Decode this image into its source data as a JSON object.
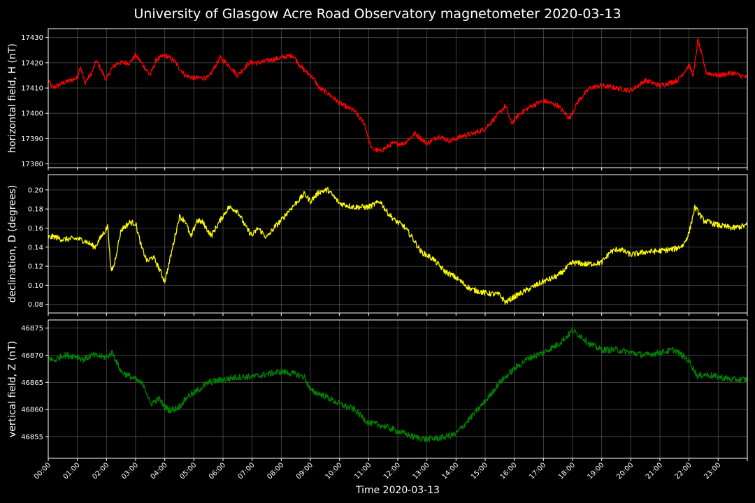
{
  "title": "University of Glasgow Acre Road Observatory magnetometer 2020-03-13",
  "chart_data": [
    {
      "type": "line",
      "ylabel": "horizontal field, H (nT)",
      "xlabel": "",
      "xlim": [
        0,
        24
      ],
      "ylim": [
        17378.5,
        17433.5
      ],
      "yticks": [
        17380,
        17390,
        17400,
        17410,
        17420,
        17430
      ],
      "grid": true,
      "series": [
        {
          "color": "#ff0000",
          "noise": 1.0,
          "x": [
            0,
            0.15,
            0.5,
            1.0,
            1.1,
            1.25,
            1.5,
            1.65,
            2.0,
            2.1,
            2.2,
            2.4,
            2.8,
            3.0,
            3.2,
            3.5,
            3.7,
            4.0,
            4.3,
            4.7,
            5.0,
            5.5,
            5.9,
            6.2,
            6.5,
            6.9,
            7.2,
            7.6,
            8.0,
            8.4,
            8.7,
            9.1,
            9.3,
            9.6,
            10.0,
            10.5,
            10.85,
            11.1,
            11.4,
            11.8,
            12.2,
            12.6,
            13.0,
            13.4,
            13.8,
            14.2,
            14.6,
            15.0,
            15.4,
            15.7,
            15.9,
            16.2,
            16.6,
            17.0,
            17.5,
            17.9,
            18.2,
            18.6,
            19.0,
            19.5,
            20.0,
            20.5,
            21.0,
            21.6,
            22.0,
            22.15,
            22.3,
            22.6,
            23.0,
            23.5,
            24.0
          ],
          "y": [
            17413,
            17410,
            17412,
            17414,
            17419,
            17412,
            17416,
            17421,
            17413,
            17416,
            17418,
            17420,
            17420,
            17423,
            17420,
            17415,
            17421,
            17423,
            17421,
            17415,
            17414,
            17414,
            17422,
            17419,
            17415,
            17420,
            17420,
            17421,
            17422,
            17423,
            17418,
            17414,
            17410,
            17408,
            17404,
            17401,
            17396,
            17386,
            17385,
            17388,
            17388,
            17392,
            17388,
            17391,
            17389,
            17391,
            17392,
            17394,
            17399,
            17403,
            17396,
            17400,
            17403,
            17405,
            17403,
            17398,
            17405,
            17410,
            17411,
            17410,
            17409,
            17413,
            17411,
            17413,
            17419,
            17415,
            17429,
            17416,
            17415,
            17416,
            17414
          ]
        }
      ]
    },
    {
      "type": "line",
      "ylabel": "declination, D (degrees)",
      "xlabel": "",
      "xlim": [
        0,
        24
      ],
      "ylim": [
        0.071,
        0.216
      ],
      "yticks": [
        0.08,
        0.1,
        0.12,
        0.14,
        0.16,
        0.18,
        0.2
      ],
      "grid": true,
      "series": [
        {
          "color": "#ffff00",
          "noise": 0.003,
          "x": [
            0,
            0.2,
            0.5,
            1.0,
            1.3,
            1.6,
            1.9,
            2.05,
            2.15,
            2.25,
            2.5,
            2.8,
            3.0,
            3.2,
            3.4,
            3.6,
            3.8,
            4.0,
            4.2,
            4.5,
            4.7,
            4.9,
            5.1,
            5.3,
            5.6,
            5.9,
            6.2,
            6.5,
            6.8,
            7.0,
            7.2,
            7.5,
            7.8,
            8.0,
            8.25,
            8.5,
            8.8,
            9.0,
            9.3,
            9.6,
            10.0,
            10.5,
            11.0,
            11.4,
            11.6,
            11.9,
            12.2,
            12.5,
            12.8,
            13.2,
            13.6,
            14.0,
            14.5,
            15.0,
            15.5,
            15.7,
            16.0,
            16.5,
            17.0,
            17.5,
            18.0,
            18.5,
            19.0,
            19.3,
            19.6,
            20.0,
            20.5,
            21.0,
            21.5,
            21.8,
            22.0,
            22.2,
            22.5,
            23.0,
            23.5,
            24.0
          ],
          "y": [
            0.15,
            0.151,
            0.148,
            0.149,
            0.146,
            0.14,
            0.155,
            0.162,
            0.115,
            0.12,
            0.158,
            0.166,
            0.165,
            0.14,
            0.125,
            0.13,
            0.118,
            0.104,
            0.13,
            0.172,
            0.168,
            0.15,
            0.168,
            0.166,
            0.152,
            0.168,
            0.182,
            0.178,
            0.16,
            0.152,
            0.16,
            0.15,
            0.162,
            0.168,
            0.178,
            0.186,
            0.196,
            0.188,
            0.198,
            0.2,
            0.186,
            0.182,
            0.182,
            0.188,
            0.178,
            0.168,
            0.162,
            0.15,
            0.135,
            0.128,
            0.115,
            0.108,
            0.096,
            0.092,
            0.09,
            0.082,
            0.088,
            0.096,
            0.104,
            0.11,
            0.124,
            0.122,
            0.124,
            0.135,
            0.138,
            0.132,
            0.135,
            0.136,
            0.138,
            0.142,
            0.155,
            0.182,
            0.168,
            0.163,
            0.16,
            0.163
          ]
        }
      ]
    },
    {
      "type": "line",
      "ylabel": "vertical field, Z (nT)",
      "xlabel": "Time 2020-03-13",
      "xlim": [
        0,
        24
      ],
      "ylim": [
        46851,
        46876.5
      ],
      "yticks": [
        46855,
        46860,
        46865,
        46870,
        46875
      ],
      "grid": true,
      "xticks": [
        "00:00",
        "01:00",
        "02:00",
        "03:00",
        "04:00",
        "05:00",
        "06:00",
        "07:00",
        "08:00",
        "09:00",
        "10:00",
        "11:00",
        "12:00",
        "13:00",
        "14:00",
        "15:00",
        "16:00",
        "17:00",
        "18:00",
        "19:00",
        "20:00",
        "21:00",
        "22:00",
        "23:00"
      ],
      "series": [
        {
          "color": "#008000",
          "noise": 0.6,
          "x": [
            0,
            0.2,
            0.5,
            1.0,
            1.2,
            1.5,
            2.0,
            2.2,
            2.5,
            3.0,
            3.3,
            3.5,
            3.8,
            4.0,
            4.2,
            4.5,
            4.8,
            5.0,
            5.5,
            6.0,
            6.5,
            7.0,
            7.5,
            8.0,
            8.5,
            8.8,
            9.0,
            9.5,
            10.0,
            10.5,
            11.0,
            11.5,
            12.0,
            12.5,
            13.0,
            13.5,
            14.0,
            14.5,
            15.0,
            15.5,
            16.0,
            16.5,
            17.0,
            17.5,
            18.0,
            18.3,
            18.6,
            19.0,
            19.5,
            20.0,
            20.5,
            21.0,
            21.5,
            22.0,
            22.3,
            22.5,
            23.0,
            23.5,
            24.0
          ],
          "y": [
            46869.5,
            46869.0,
            46870.0,
            46869.8,
            46869.2,
            46870.0,
            46869.6,
            46870.5,
            46867.0,
            46865.5,
            46864.5,
            46861.0,
            46862.0,
            46860.5,
            46859.8,
            46860.5,
            46862.5,
            46863.0,
            46865.0,
            46865.5,
            46866.0,
            46866.0,
            46866.5,
            46867.0,
            46866.5,
            46866.0,
            46863.5,
            46862.5,
            46861.0,
            46860.0,
            46857.5,
            46857.0,
            46856.0,
            46855.0,
            46854.5,
            46854.8,
            46855.5,
            46858.5,
            46861.5,
            46865.0,
            46867.5,
            46869.5,
            46870.5,
            46872.0,
            46874.5,
            46873.5,
            46872.0,
            46871.0,
            46871.0,
            46870.5,
            46870.0,
            46870.5,
            46871.0,
            46869.0,
            46866.0,
            46866.5,
            46866.0,
            46865.5,
            46865.5
          ]
        }
      ]
    }
  ]
}
